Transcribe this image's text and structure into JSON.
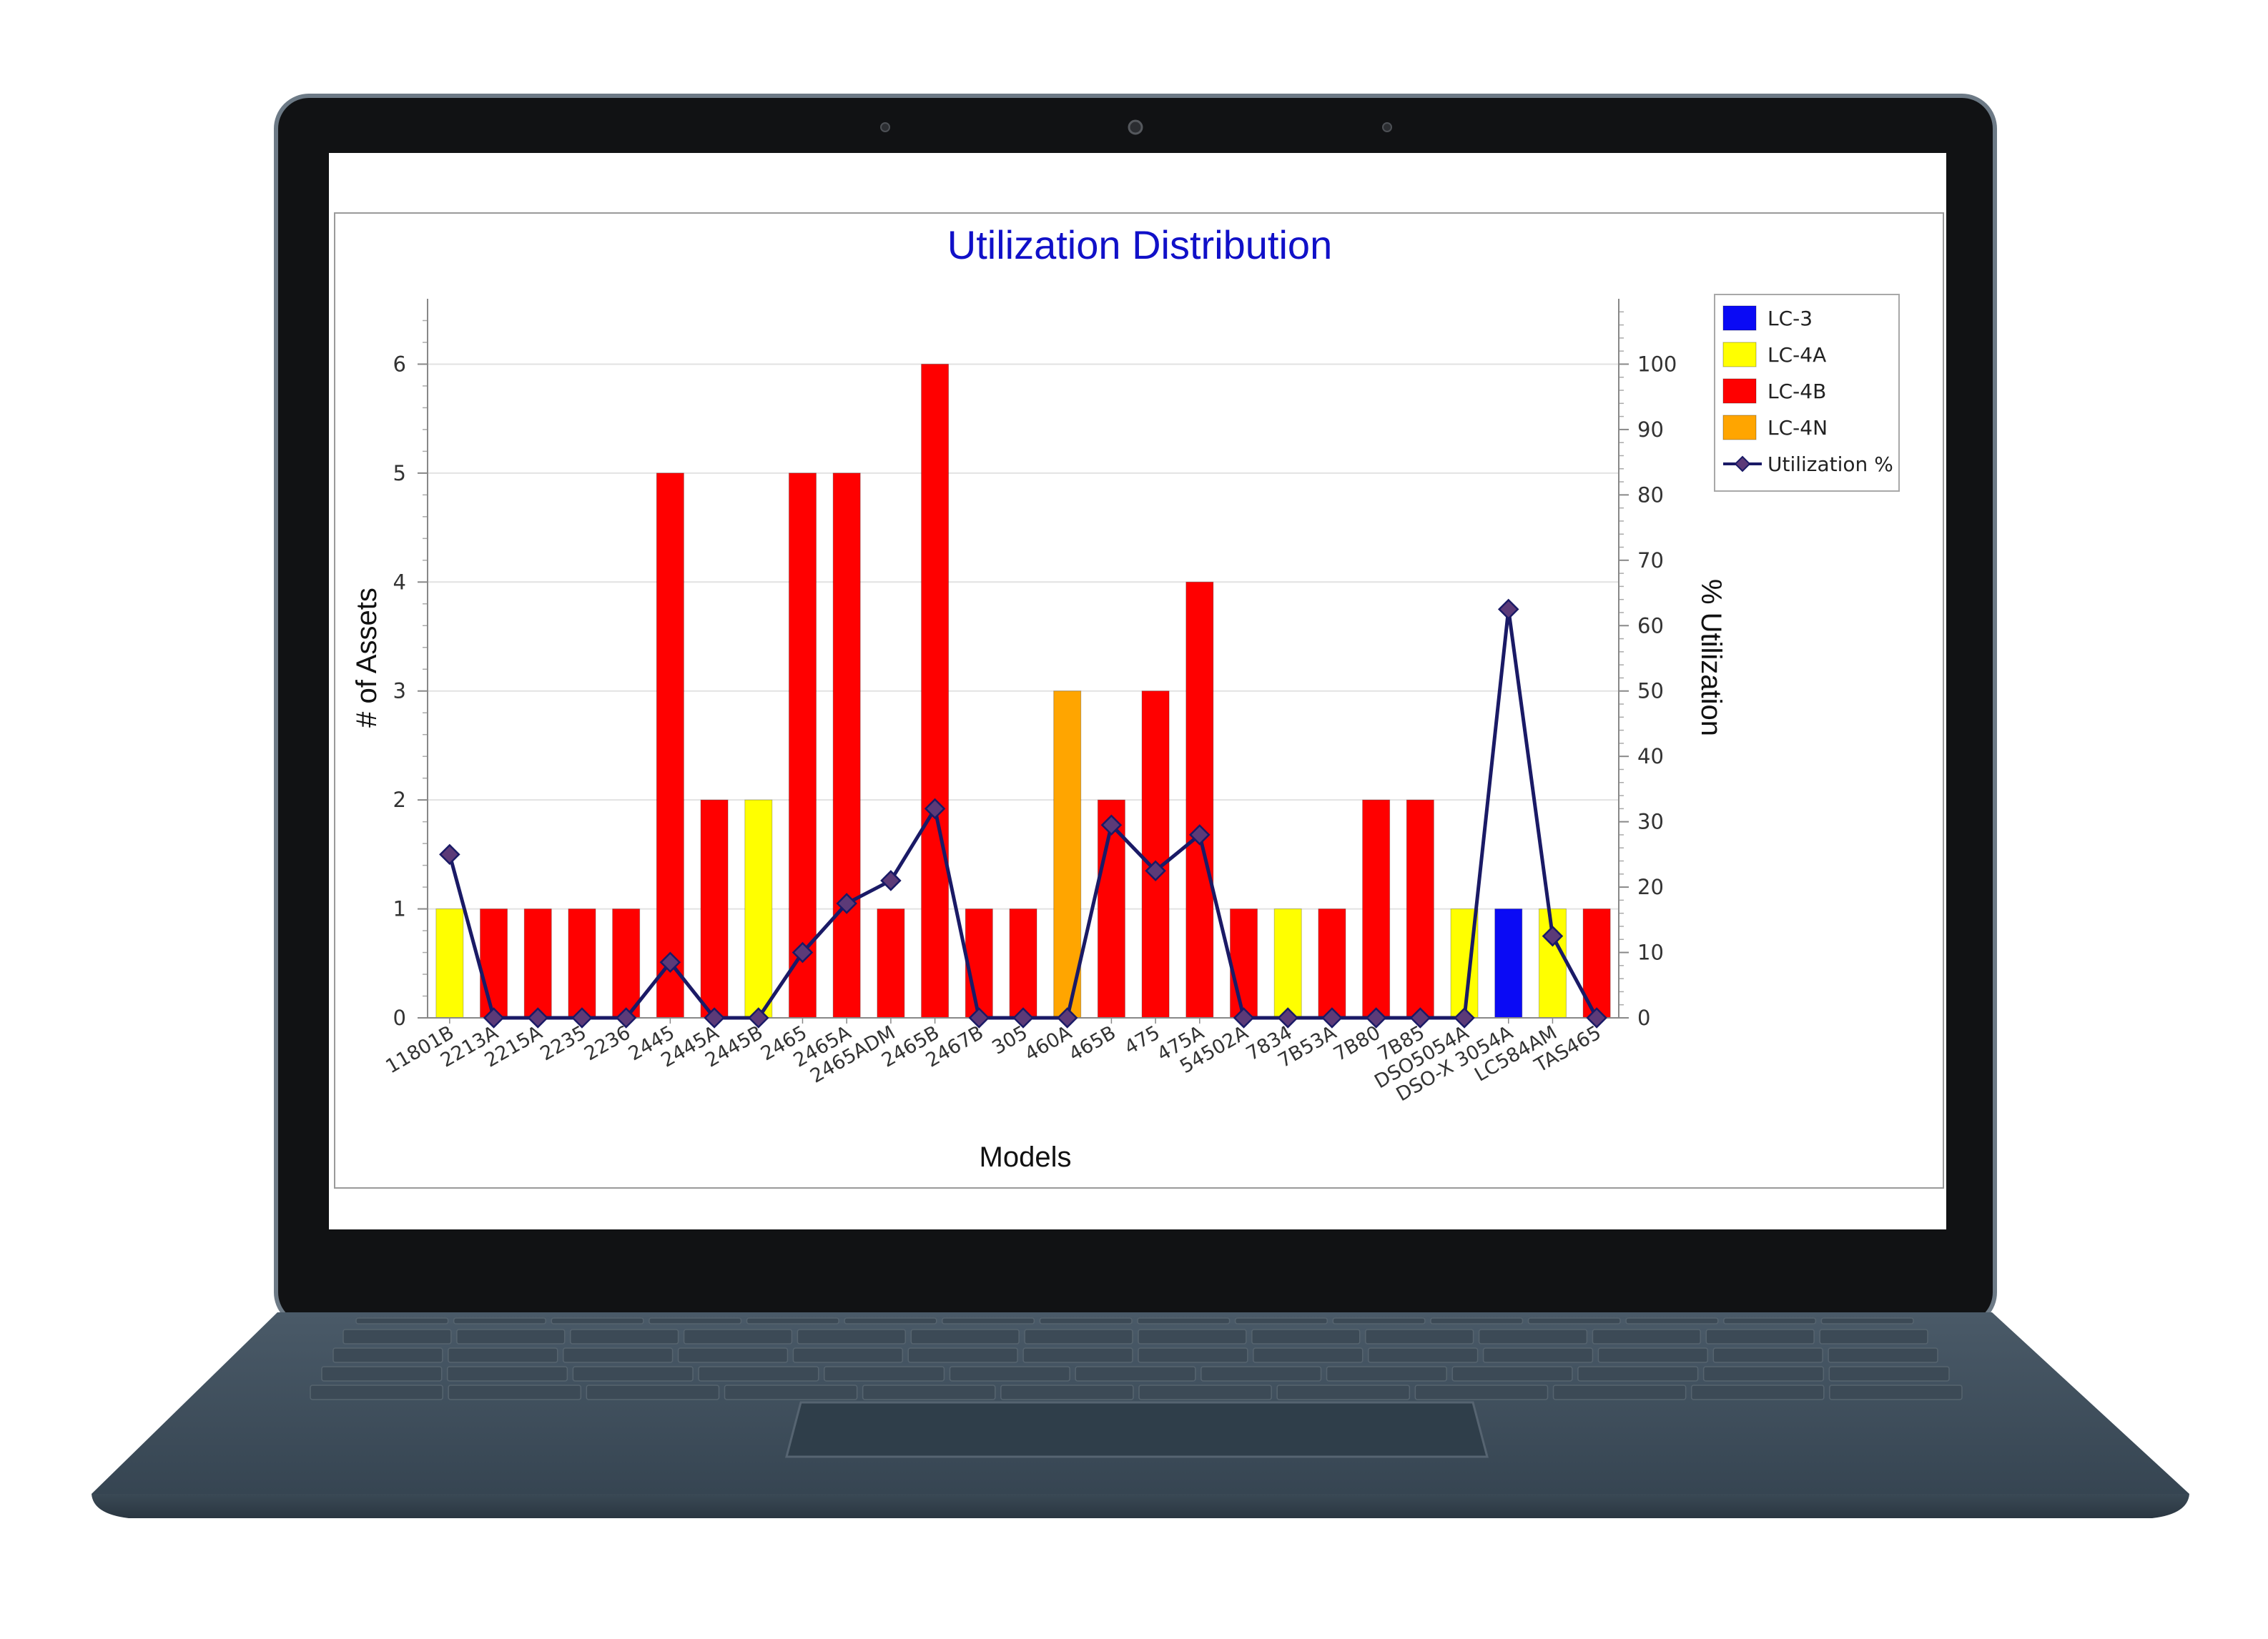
{
  "chart_data": {
    "type": "bar",
    "title": "Utilization Distribution",
    "xlabel": "Models",
    "ylabel": "# of Assets",
    "y2label": "% Utilization",
    "ylim": [
      0,
      6.6
    ],
    "y2lim": [
      0,
      110
    ],
    "yticks": [
      "0",
      "1",
      "2",
      "3",
      "4",
      "5",
      "6"
    ],
    "y2ticks": [
      "0",
      "10",
      "20",
      "30",
      "40",
      "50",
      "60",
      "70",
      "80",
      "90",
      "100"
    ],
    "grid": true,
    "legend_position": "top-right",
    "categories": [
      "11801B",
      "2213A",
      "2215A",
      "2235",
      "2236",
      "2445",
      "2445A",
      "2445B",
      "2465",
      "2465A",
      "2465ADM",
      "2465B",
      "2467B",
      "305",
      "460A",
      "465B",
      "475",
      "475A",
      "54502A",
      "7834",
      "7B53A",
      "7B80",
      "7B85",
      "DSO5054A",
      "DSO-X 3054A",
      "LC584AM",
      "TAS465"
    ],
    "bars": [
      {
        "value": 1,
        "series": "LC-4A"
      },
      {
        "value": 1,
        "series": "LC-4B"
      },
      {
        "value": 1,
        "series": "LC-4B"
      },
      {
        "value": 1,
        "series": "LC-4B"
      },
      {
        "value": 1,
        "series": "LC-4B"
      },
      {
        "value": 5,
        "series": "LC-4B"
      },
      {
        "value": 2,
        "series": "LC-4B"
      },
      {
        "value": 2,
        "series": "LC-4A"
      },
      {
        "value": 5,
        "series": "LC-4B"
      },
      {
        "value": 5,
        "series": "LC-4B"
      },
      {
        "value": 1,
        "series": "LC-4B"
      },
      {
        "value": 6,
        "series": "LC-4B"
      },
      {
        "value": 1,
        "series": "LC-4B"
      },
      {
        "value": 1,
        "series": "LC-4B"
      },
      {
        "value": 3,
        "series": "LC-4N"
      },
      {
        "value": 2,
        "series": "LC-4B"
      },
      {
        "value": 3,
        "series": "LC-4B"
      },
      {
        "value": 4,
        "series": "LC-4B"
      },
      {
        "value": 1,
        "series": "LC-4B"
      },
      {
        "value": 1,
        "series": "LC-4A"
      },
      {
        "value": 1,
        "series": "LC-4B"
      },
      {
        "value": 2,
        "series": "LC-4B"
      },
      {
        "value": 2,
        "series": "LC-4B"
      },
      {
        "value": 1,
        "series": "LC-4A"
      },
      {
        "value": 1,
        "series": "LC-3"
      },
      {
        "value": 1,
        "series": "LC-4A"
      },
      {
        "value": 1,
        "series": "LC-4B"
      }
    ],
    "line": {
      "name": "Utilization %",
      "values": [
        25,
        0,
        0,
        0,
        0,
        8.5,
        0,
        0,
        10,
        17.5,
        21,
        32,
        0,
        0,
        0,
        29.5,
        22.5,
        28,
        0,
        0,
        0,
        0,
        0,
        0,
        62.5,
        12.5,
        0
      ]
    },
    "legend": [
      {
        "name": "LC-3",
        "color": "#0a0af5"
      },
      {
        "name": "LC-4A",
        "color": "#ffff00"
      },
      {
        "name": "LC-4B",
        "color": "#ff0000"
      },
      {
        "name": "LC-4N",
        "color": "#ffa500"
      },
      {
        "name": "Utilization %",
        "color": "#1a1a66",
        "marker": "diamond"
      }
    ],
    "colors": {
      "LC-3": "#0a0af5",
      "LC-4A": "#ffff00",
      "LC-4B": "#ff0000",
      "LC-4N": "#ffa500",
      "line": "#1a1a66",
      "marker_fill": "#5c3a78",
      "title": "#1010c8"
    }
  }
}
